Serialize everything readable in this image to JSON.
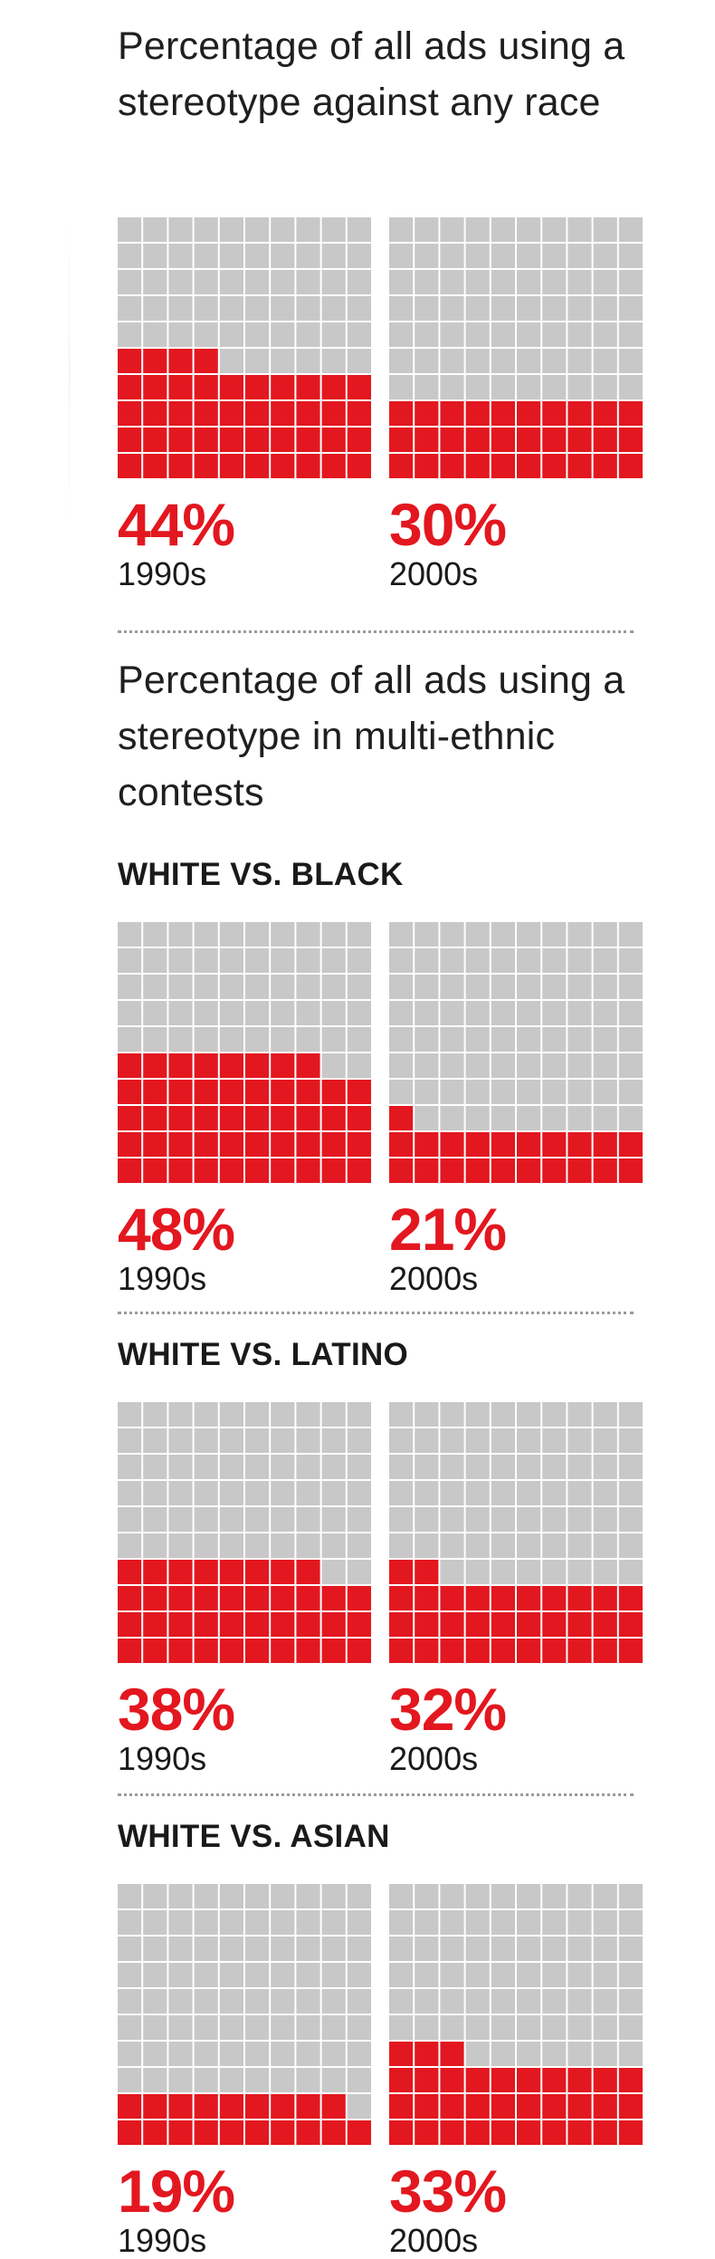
{
  "colors": {
    "filled": "#e3171f",
    "empty": "#c8c8c8",
    "gap": "#ffffff",
    "percent_text": "#e3171f"
  },
  "title_top": "Percentage of all ads using a stereotype against any race",
  "title_multi": "Percentage of all ads using a stereotype in multi-ethnic contests",
  "groups": [
    {
      "label": "",
      "left": {
        "pct_text": "44%",
        "decade": "1990s"
      },
      "right": {
        "pct_text": "30%",
        "decade": "2000s"
      }
    },
    {
      "label": "WHITE VS. BLACK",
      "left": {
        "pct_text": "48%",
        "decade": "1990s"
      },
      "right": {
        "pct_text": "21%",
        "decade": "2000s"
      }
    },
    {
      "label": "WHITE VS. LATINO",
      "left": {
        "pct_text": "38%",
        "decade": "1990s"
      },
      "right": {
        "pct_text": "32%",
        "decade": "2000s"
      }
    },
    {
      "label": "WHITE VS. ASIAN",
      "left": {
        "pct_text": "19%",
        "decade": "1990s"
      },
      "right": {
        "pct_text": "33%",
        "decade": "2000s"
      }
    }
  ],
  "chart_data": {
    "type": "waffle",
    "grid": "10x10, filled bottom-up",
    "categories": [
      "1990s",
      "2000s"
    ],
    "unit": "percent of all ads",
    "panels": [
      {
        "group": "Percentage of all ads using a stereotype against any race",
        "series": [
          {
            "x": "1990s",
            "value": 44
          },
          {
            "x": "2000s",
            "value": 30
          }
        ]
      },
      {
        "group": "WHITE VS. BLACK",
        "series": [
          {
            "x": "1990s",
            "value": 48
          },
          {
            "x": "2000s",
            "value": 21
          }
        ]
      },
      {
        "group": "WHITE VS. LATINO",
        "series": [
          {
            "x": "1990s",
            "value": 38
          },
          {
            "x": "2000s",
            "value": 32
          }
        ]
      },
      {
        "group": "WHITE VS. ASIAN",
        "series": [
          {
            "x": "1990s",
            "value": 19
          },
          {
            "x": "2000s",
            "value": 33
          }
        ]
      }
    ]
  }
}
